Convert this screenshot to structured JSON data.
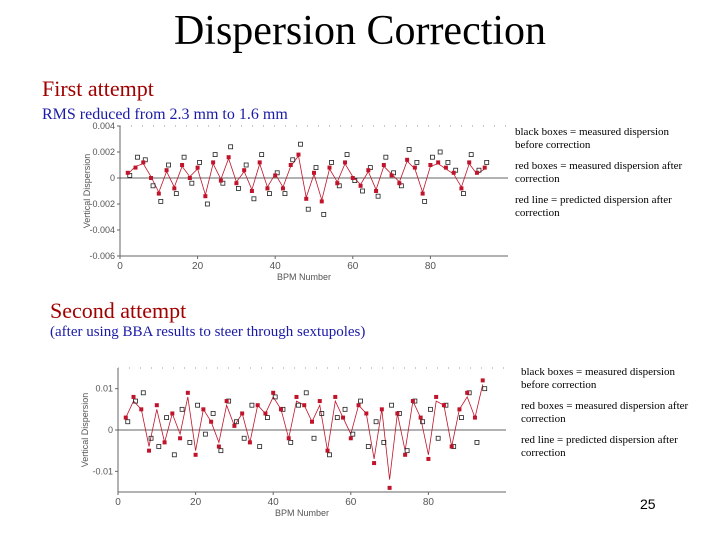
{
  "slide": {
    "title": "Dispersion Correction",
    "page_number": "25",
    "first": {
      "heading": "First attempt",
      "subheading": "RMS reduced from 2.3 mm to 1.6 mm",
      "legend": [
        "black boxes = measured dispersion before correction",
        "red boxes = measured dispersion after correction",
        "red line = predicted dispersion after correction"
      ]
    },
    "second": {
      "heading": "Second attempt",
      "subheading": "(after using BBA results to steer through sextupoles)",
      "legend": [
        "black boxes = measured dispersion before correction",
        "red boxes = measured dispersion after correction",
        "red line = predicted dispersion after correction"
      ]
    }
  },
  "colors": {
    "accent_red": "#a00000",
    "sub_blue": "#1a1aa8",
    "marker_red": "#c0142a"
  },
  "chart_data": [
    {
      "type": "scatter",
      "title": "",
      "xlabel": "BPM Number",
      "ylabel": "Vertical Dispersion",
      "xlim": [
        0,
        100
      ],
      "ylim": [
        -0.006,
        0.004
      ],
      "xticks": [
        0,
        20,
        40,
        60,
        80
      ],
      "xtick_labels": [
        "0",
        "20",
        "40",
        "60",
        "80"
      ],
      "yticks": [
        0.004,
        0.002,
        0,
        -0.002,
        -0.004,
        -0.006
      ],
      "ytick_labels": [
        "0.004",
        "0.002",
        "0",
        "-0.002",
        "-0.004",
        "-0.006"
      ],
      "grid": false,
      "series": [
        {
          "name": "black boxes = measured dispersion before correction",
          "x": [
            2,
            4,
            6,
            8,
            10,
            12,
            14,
            16,
            18,
            20,
            22,
            24,
            26,
            28,
            30,
            32,
            34,
            36,
            38,
            40,
            42,
            44,
            46,
            48,
            50,
            52,
            54,
            56,
            58,
            60,
            62,
            64,
            66,
            68,
            70,
            72,
            74,
            76,
            78,
            80,
            82,
            84,
            86,
            88,
            90,
            92,
            94
          ],
          "y": [
            0.0002,
            0.0016,
            0.0014,
            -0.0006,
            -0.0018,
            0.001,
            -0.0012,
            0.0016,
            -0.0004,
            0.0012,
            -0.002,
            0.0018,
            -0.0004,
            0.0024,
            -0.0008,
            0.001,
            -0.0016,
            0.0018,
            -0.0012,
            0.0004,
            -0.0012,
            0.0014,
            0.0026,
            -0.0024,
            0.0008,
            -0.0028,
            0.0012,
            -0.0006,
            0.0018,
            -0.0002,
            -0.001,
            0.0008,
            -0.0014,
            0.0016,
            0.0004,
            -0.0006,
            0.0022,
            0.0012,
            -0.0018,
            0.0016,
            0.002,
            0.0012,
            0.0006,
            -0.0012,
            0.0018,
            0.0006,
            0.0012
          ]
        },
        {
          "name": "red boxes = measured dispersion after correction",
          "x": [
            2,
            4,
            6,
            8,
            10,
            12,
            14,
            16,
            18,
            20,
            22,
            24,
            26,
            28,
            30,
            32,
            34,
            36,
            38,
            40,
            42,
            44,
            46,
            48,
            50,
            52,
            54,
            56,
            58,
            60,
            62,
            64,
            66,
            68,
            70,
            72,
            74,
            76,
            78,
            80,
            82,
            84,
            86,
            88,
            90,
            92,
            94
          ],
          "y": [
            0.0004,
            0.0008,
            0.0012,
            0,
            -0.0012,
            0.0006,
            -0.0008,
            0.001,
            0,
            0.0008,
            -0.0014,
            0.0012,
            -0.0002,
            0.0016,
            -0.0004,
            0.0006,
            -0.001,
            0.0012,
            -0.0008,
            0.0002,
            -0.0008,
            0.001,
            0.0018,
            -0.0016,
            0.0004,
            -0.0018,
            0.0008,
            -0.0004,
            0.0012,
            0,
            -0.0006,
            0.0006,
            -0.001,
            0.001,
            0.0002,
            -0.0004,
            0.0014,
            0.0008,
            -0.0012,
            0.001,
            0.0012,
            0.0008,
            0.0004,
            -0.0008,
            0.0012,
            0.0004,
            0.0008
          ]
        },
        {
          "name": "red line = predicted dispersion after correction",
          "x": [
            2,
            4,
            6,
            8,
            10,
            12,
            14,
            16,
            18,
            20,
            22,
            24,
            26,
            28,
            30,
            32,
            34,
            36,
            38,
            40,
            42,
            44,
            46,
            48,
            50,
            52,
            54,
            56,
            58,
            60,
            62,
            64,
            66,
            68,
            70,
            72,
            74,
            76,
            78,
            80,
            82,
            84,
            86,
            88,
            90,
            92,
            94
          ],
          "y": [
            0.0003,
            0.0009,
            0.0011,
            0.0001,
            -0.0011,
            0.0005,
            -0.0007,
            0.0009,
            0.0001,
            0.0007,
            -0.0013,
            0.0011,
            -0.0001,
            0.0015,
            -0.0003,
            0.0005,
            -0.0009,
            0.0011,
            -0.0007,
            0.0003,
            -0.0007,
            0.0009,
            0.0017,
            -0.0015,
            0.0003,
            -0.0017,
            0.0007,
            -0.0003,
            0.0011,
            0.0001,
            -0.0005,
            0.0005,
            -0.0009,
            0.0009,
            0.0003,
            -0.0003,
            0.0013,
            0.0007,
            -0.0011,
            0.0009,
            0.0011,
            0.0007,
            0.0003,
            -0.0007,
            0.0011,
            0.0003,
            0.0007
          ]
        }
      ]
    },
    {
      "type": "scatter",
      "title": "",
      "xlabel": "BPM Number",
      "ylabel": "Vertical Dispersion",
      "xlim": [
        0,
        100
      ],
      "ylim": [
        -0.015,
        0.015
      ],
      "xticks": [
        0,
        20,
        40,
        60,
        80
      ],
      "xtick_labels": [
        "0",
        "20",
        "40",
        "60",
        "80"
      ],
      "yticks": [
        0.01,
        0,
        -0.01
      ],
      "ytick_labels": [
        "0.01",
        "0",
        "-0.01"
      ],
      "grid": false,
      "series": [
        {
          "name": "black boxes = measured dispersion before correction",
          "x": [
            2,
            4,
            6,
            8,
            10,
            12,
            14,
            16,
            18,
            20,
            22,
            24,
            26,
            28,
            30,
            32,
            34,
            36,
            38,
            40,
            42,
            44,
            46,
            48,
            50,
            52,
            54,
            56,
            58,
            60,
            62,
            64,
            66,
            68,
            70,
            72,
            74,
            76,
            78,
            80,
            82,
            84,
            86,
            88,
            90,
            92,
            94
          ],
          "y": [
            0.002,
            0.007,
            0.009,
            -0.002,
            -0.004,
            0.003,
            -0.006,
            0.005,
            -0.003,
            0.006,
            -0.001,
            0.004,
            -0.005,
            0.007,
            0.002,
            -0.002,
            0.006,
            -0.004,
            0.003,
            0.008,
            0.005,
            -0.003,
            0.006,
            0.009,
            -0.002,
            0.004,
            -0.006,
            0.003,
            0.005,
            -0.001,
            0.007,
            -0.004,
            0.002,
            -0.003,
            0.006,
            0.004,
            -0.005,
            0.007,
            0.002,
            0.005,
            -0.002,
            0.006,
            -0.004,
            0.003,
            0.009,
            -0.003,
            0.01
          ]
        },
        {
          "name": "red boxes = measured dispersion after correction",
          "x": [
            2,
            4,
            6,
            8,
            10,
            12,
            14,
            16,
            18,
            20,
            22,
            24,
            26,
            28,
            30,
            32,
            34,
            36,
            38,
            40,
            42,
            44,
            46,
            48,
            50,
            52,
            54,
            56,
            58,
            60,
            62,
            64,
            66,
            68,
            70,
            72,
            74,
            76,
            78,
            80,
            82,
            84,
            86,
            88,
            90,
            92,
            94
          ],
          "y": [
            0.003,
            0.008,
            0.005,
            -0.005,
            0.006,
            -0.003,
            0.004,
            -0.002,
            0.009,
            -0.006,
            0.005,
            0.002,
            -0.004,
            0.007,
            0.001,
            0.004,
            -0.003,
            0.006,
            0.004,
            0.009,
            0.005,
            -0.002,
            0.008,
            0.006,
            0.002,
            0.007,
            -0.005,
            0.008,
            0.003,
            -0.002,
            0.006,
            0.004,
            -0.008,
            0.005,
            -0.014,
            0.004,
            -0.006,
            0.007,
            0.003,
            -0.007,
            0.008,
            0.006,
            -0.004,
            0.005,
            0.009,
            0.003,
            0.012
          ]
        },
        {
          "name": "red line = predicted dispersion after correction",
          "x": [
            2,
            4,
            6,
            8,
            10,
            12,
            14,
            16,
            18,
            20,
            22,
            24,
            26,
            28,
            30,
            32,
            34,
            36,
            38,
            40,
            42,
            44,
            46,
            48,
            50,
            52,
            54,
            56,
            58,
            60,
            62,
            64,
            66,
            68,
            70,
            72,
            74,
            76,
            78,
            80,
            82,
            84,
            86,
            88,
            90,
            92,
            94
          ],
          "y": [
            0.003,
            0.007,
            0.005,
            -0.004,
            0.005,
            -0.003,
            0.004,
            -0.001,
            0.008,
            -0.005,
            0.005,
            0.002,
            -0.003,
            0.006,
            0.001,
            0.004,
            -0.003,
            0.006,
            0.004,
            0.008,
            0.005,
            -0.002,
            0.007,
            0.006,
            0.002,
            0.006,
            -0.005,
            0.007,
            0.003,
            -0.001,
            0.006,
            0.004,
            -0.007,
            0.005,
            -0.012,
            0.004,
            -0.005,
            0.007,
            0.003,
            -0.006,
            0.007,
            0.006,
            -0.004,
            0.005,
            0.008,
            0.003,
            0.011
          ]
        }
      ]
    }
  ]
}
